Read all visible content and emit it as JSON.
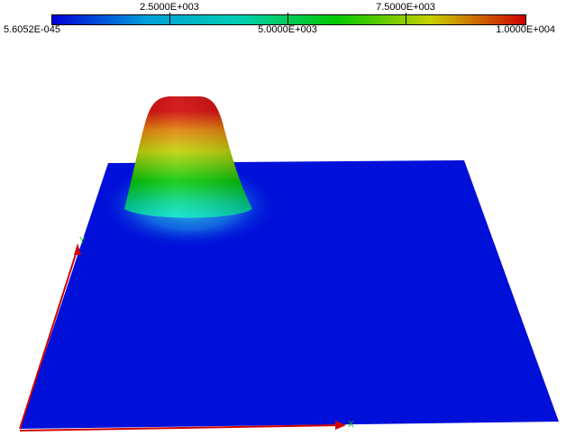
{
  "legend": {
    "top_labels": [
      "2.5000E+003",
      "7.5000E+003"
    ],
    "bottom_labels": [
      "5.6052E-045",
      "5.0000E+003",
      "1.0000E+004"
    ],
    "colors": [
      "#0000d8",
      "#00a0d8",
      "#00d0b0",
      "#00c800",
      "#c8d000",
      "#d00000"
    ]
  },
  "axes": {
    "x_label": "X",
    "y_label": "Y",
    "arrow_color": "#d00000",
    "label_color": "#00c000"
  },
  "surface": {
    "base_color": "#0010d8"
  }
}
